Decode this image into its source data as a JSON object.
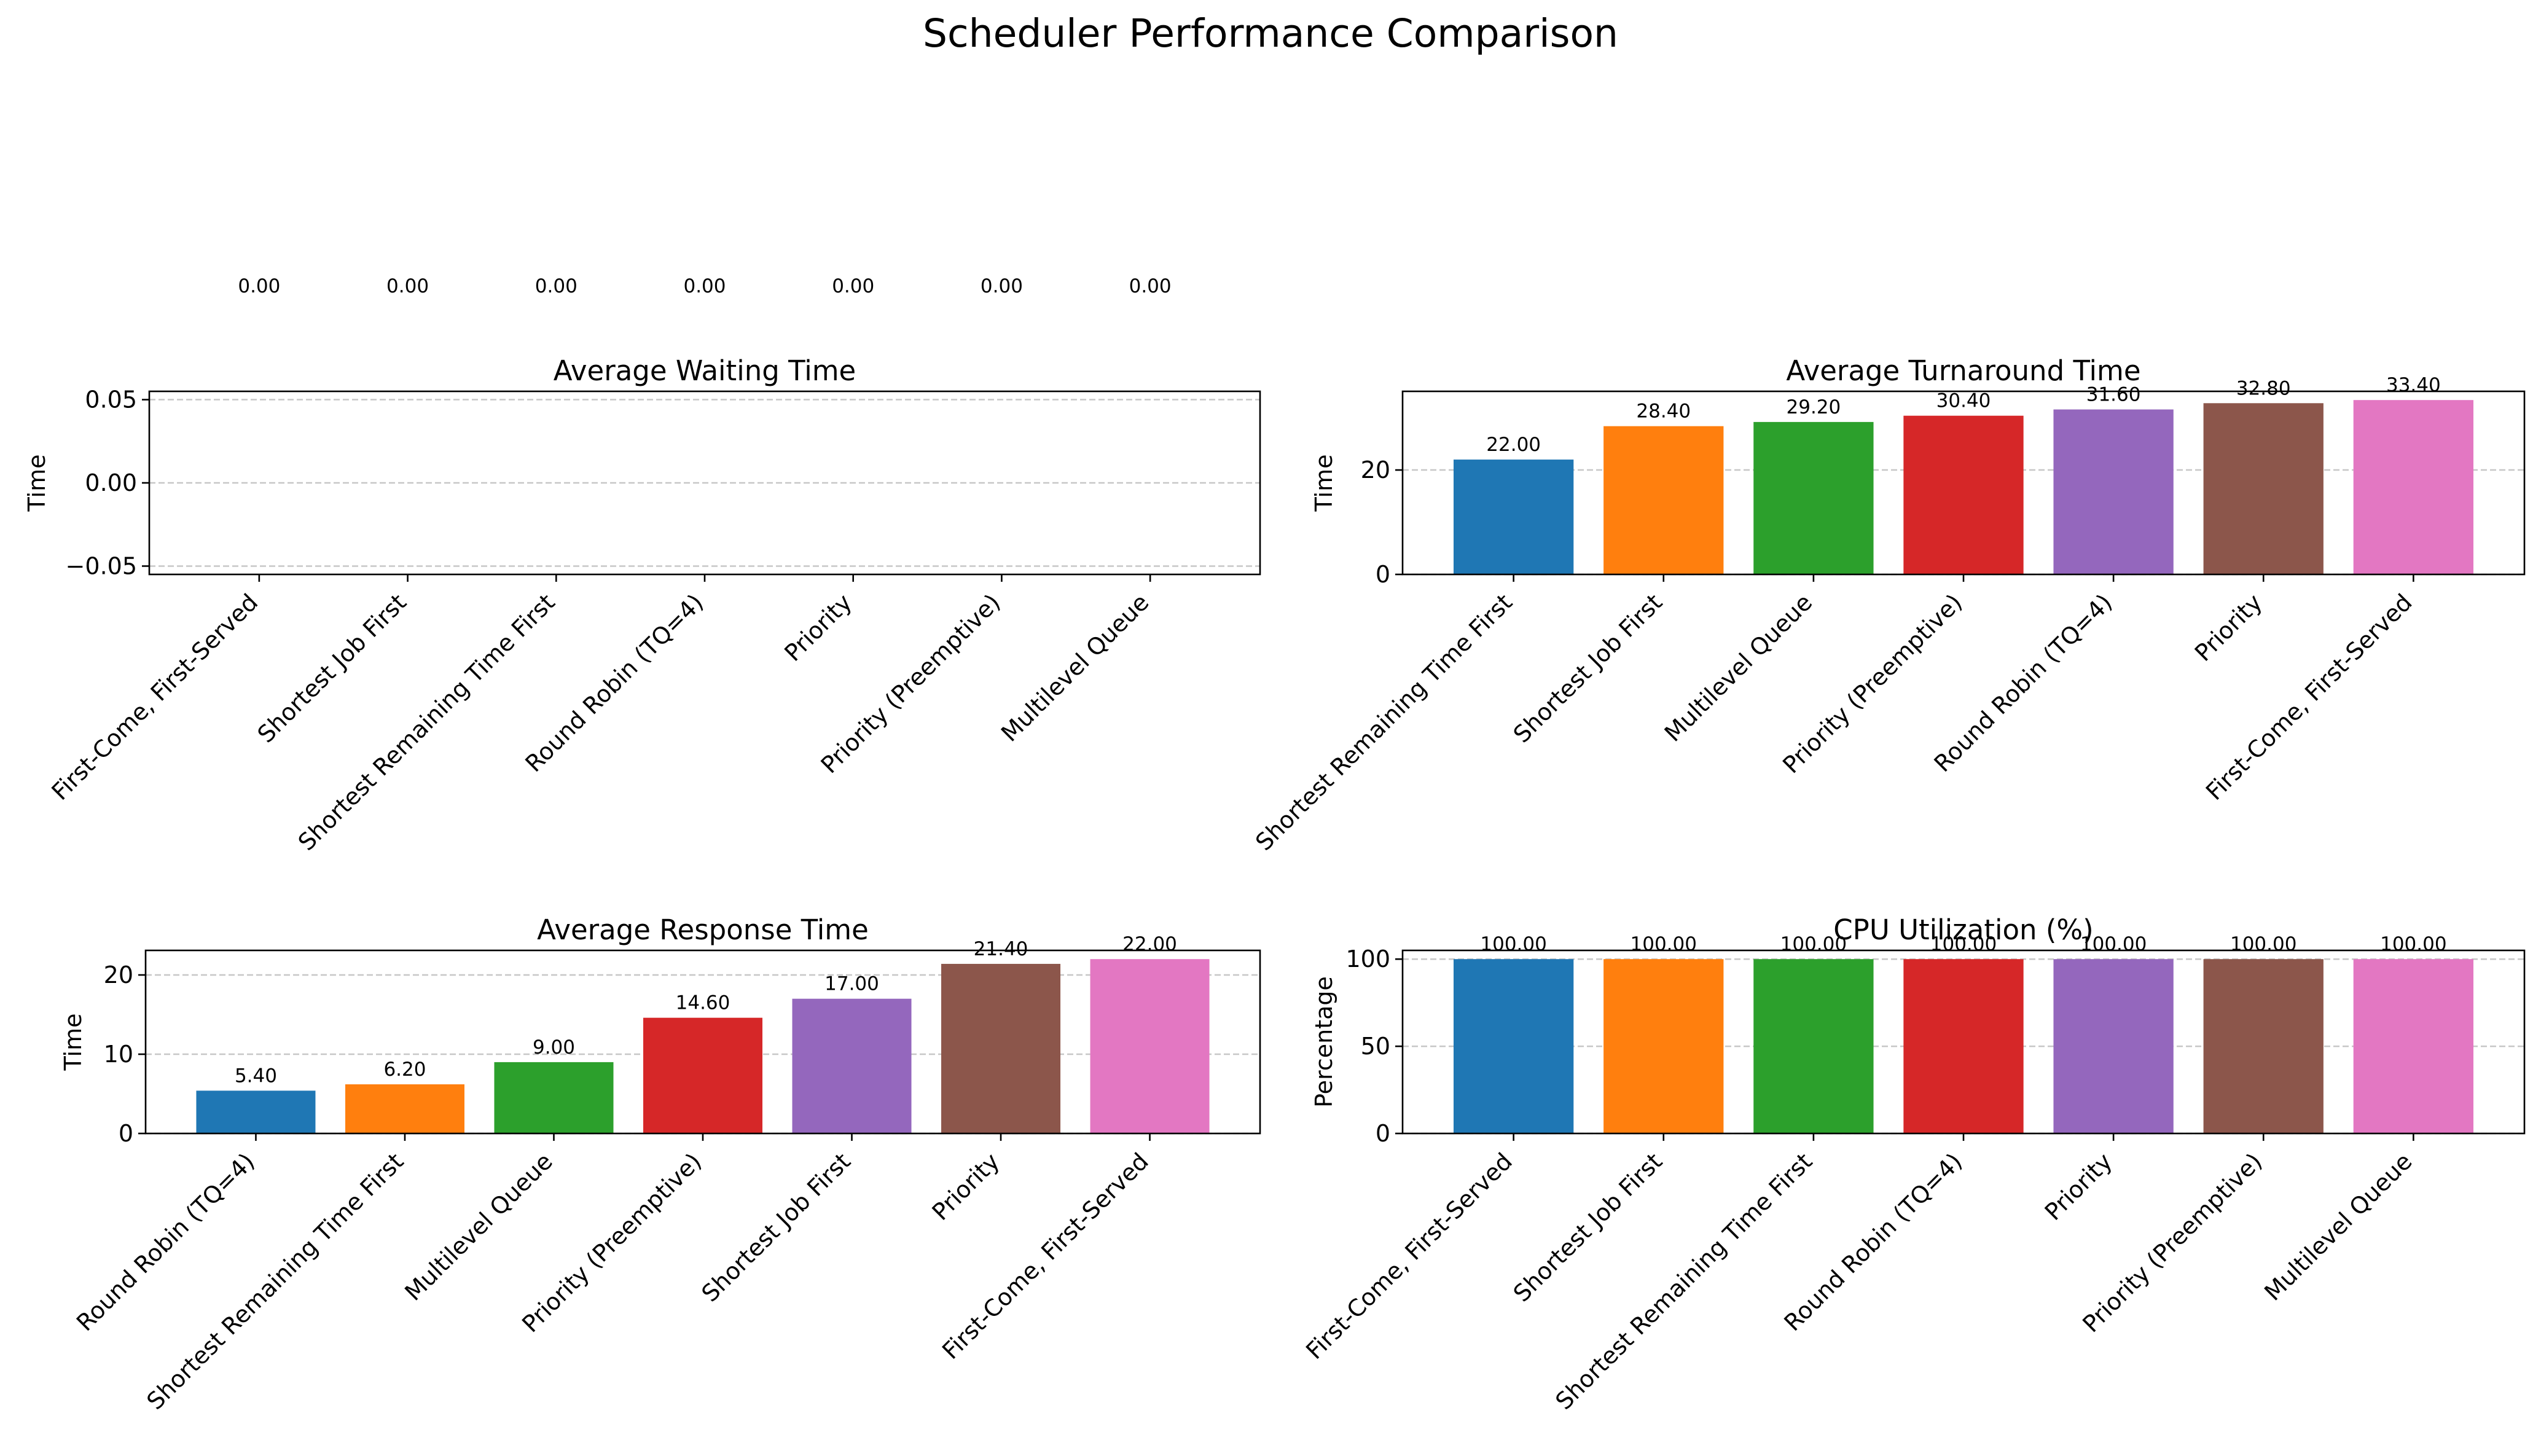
{
  "figure": {
    "title": "Scheduler Performance Comparison"
  },
  "palette": [
    "#1f77b4",
    "#ff7f0e",
    "#2ca02c",
    "#d62728",
    "#9467bd",
    "#8c564b",
    "#e377c2"
  ],
  "chart_data": [
    {
      "type": "bar",
      "title": "Average Waiting Time",
      "xlabel": "",
      "ylabel": "Time",
      "categories": [
        "First-Come, First-Served",
        "Shortest Job First",
        "Shortest Remaining Time First",
        "Round Robin (TQ=4)",
        "Priority",
        "Priority (Preemptive)",
        "Multilevel Queue"
      ],
      "values": [
        0,
        0,
        0,
        0,
        0,
        0,
        0
      ],
      "data_labels": [
        "0.00",
        "0.00",
        "0.00",
        "0.00",
        "0.00",
        "0.00",
        "0.00"
      ],
      "ylim": [
        -0.055,
        0.055
      ],
      "yticks": [
        -0.05,
        0,
        0.05
      ],
      "ytick_labels": [
        "−0.05",
        "0.00",
        "0.05"
      ],
      "grid": "y-dashed",
      "legend": "none"
    },
    {
      "type": "bar",
      "title": "Average Turnaround Time",
      "xlabel": "",
      "ylabel": "Time",
      "categories": [
        "Shortest Remaining Time First",
        "Shortest Job First",
        "Multilevel Queue",
        "Priority (Preemptive)",
        "Round Robin (TQ=4)",
        "Priority",
        "First-Come, First-Served"
      ],
      "values": [
        22.0,
        28.4,
        29.2,
        30.4,
        31.6,
        32.8,
        33.4
      ],
      "data_labels": [
        "22.00",
        "28.40",
        "29.20",
        "30.40",
        "31.60",
        "32.80",
        "33.40"
      ],
      "ylim": [
        0,
        35.07
      ],
      "yticks": [
        0,
        20
      ],
      "ytick_labels": [
        "0",
        "20"
      ],
      "grid": "y-dashed",
      "legend": "none"
    },
    {
      "type": "bar",
      "title": "Average Response Time",
      "xlabel": "",
      "ylabel": "Time",
      "categories": [
        "Round Robin (TQ=4)",
        "Shortest Remaining Time First",
        "Multilevel Queue",
        "Priority (Preemptive)",
        "Shortest Job First",
        "Priority",
        "First-Come, First-Served"
      ],
      "values": [
        5.4,
        6.2,
        9.0,
        14.6,
        17.0,
        21.4,
        22.0
      ],
      "data_labels": [
        "5.40",
        "6.20",
        "9.00",
        "14.60",
        "17.00",
        "21.40",
        "22.00"
      ],
      "ylim": [
        0,
        23.1
      ],
      "yticks": [
        0,
        10,
        20
      ],
      "ytick_labels": [
        "0",
        "10",
        "20"
      ],
      "grid": "y-dashed",
      "legend": "none"
    },
    {
      "type": "bar",
      "title": "CPU Utilization (%)",
      "xlabel": "",
      "ylabel": "Percentage",
      "categories": [
        "First-Come, First-Served",
        "Shortest Job First",
        "Shortest Remaining Time First",
        "Round Robin (TQ=4)",
        "Priority",
        "Priority (Preemptive)",
        "Multilevel Queue"
      ],
      "values": [
        100,
        100,
        100,
        100,
        100,
        100,
        100
      ],
      "data_labels": [
        "100.00",
        "100.00",
        "100.00",
        "100.00",
        "100.00",
        "100.00",
        "100.00"
      ],
      "ylim": [
        0,
        105
      ],
      "yticks": [
        0,
        50,
        100
      ],
      "ytick_labels": [
        "0",
        "50",
        "100"
      ],
      "grid": "y-dashed",
      "legend": "none"
    }
  ]
}
